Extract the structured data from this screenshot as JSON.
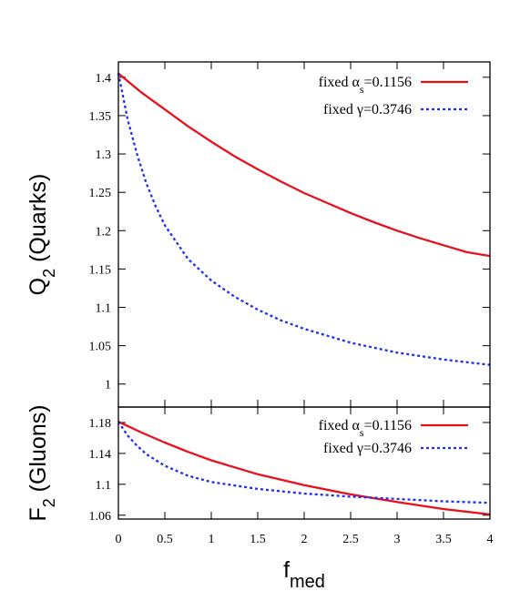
{
  "chart_data": [
    {
      "type": "line",
      "panel": "top",
      "ylabel": "Q",
      "ylabel_sub": "2",
      "ylabel_rest": " (Quarks)",
      "xlim": [
        0,
        4
      ],
      "ylim": [
        0.97,
        1.42
      ],
      "yticks": [
        1,
        1.05,
        1.1,
        1.15,
        1.2,
        1.25,
        1.3,
        1.35,
        1.4
      ],
      "ytick_labels": [
        "1",
        "1.05",
        "1.1",
        "1.15",
        "1.2",
        "1.25",
        "1.3",
        "1.35",
        "1.4"
      ],
      "legend_position": "top-right",
      "series": [
        {
          "name_pre": "fixed ",
          "name_greek": "α",
          "name_sub": "s",
          "name_post": "=0.1156",
          "color": "#e8101b",
          "style": "solid",
          "x": [
            0,
            0.25,
            0.5,
            0.75,
            1,
            1.25,
            1.5,
            1.75,
            2,
            2.25,
            2.5,
            2.75,
            3,
            3.25,
            3.5,
            3.75,
            4
          ],
          "y": [
            1.405,
            1.38,
            1.358,
            1.336,
            1.316,
            1.297,
            1.28,
            1.264,
            1.249,
            1.236,
            1.223,
            1.211,
            1.2,
            1.19,
            1.181,
            1.172,
            1.167
          ]
        },
        {
          "name_pre": "fixed ",
          "name_greek": "γ",
          "name_sub": "",
          "name_post": "=0.3746",
          "color": "#1f2ff0",
          "style": "dotted",
          "x": [
            0,
            0.1,
            0.2,
            0.3,
            0.4,
            0.5,
            0.75,
            1,
            1.25,
            1.5,
            1.75,
            2,
            2.5,
            3,
            3.5,
            4
          ],
          "y": [
            1.405,
            1.345,
            1.3,
            1.262,
            1.232,
            1.207,
            1.163,
            1.135,
            1.114,
            1.097,
            1.083,
            1.072,
            1.054,
            1.041,
            1.032,
            1.025
          ]
        }
      ]
    },
    {
      "type": "line",
      "panel": "bottom",
      "xlabel": "f",
      "xlabel_sub": "med",
      "ylabel": "F",
      "ylabel_sub": "2",
      "ylabel_rest": " (Gluons)",
      "xlim": [
        0,
        4
      ],
      "ylim": [
        1.055,
        1.2
      ],
      "xticks": [
        0,
        0.5,
        1,
        1.5,
        2,
        2.5,
        3,
        3.5,
        4
      ],
      "xtick_labels": [
        "0",
        "0.5",
        "1",
        "1.5",
        "2",
        "2.5",
        "3",
        "3.5",
        "4"
      ],
      "yticks": [
        1.06,
        1.1,
        1.14,
        1.18
      ],
      "ytick_labels": [
        "1.06",
        "1.1",
        "1.14",
        "1.18"
      ],
      "legend_position": "top-right",
      "series": [
        {
          "name_pre": "fixed ",
          "name_greek": "α",
          "name_sub": "s",
          "name_post": "=0.1156",
          "color": "#e8101b",
          "style": "solid",
          "x": [
            0,
            0.25,
            0.5,
            0.75,
            1,
            1.5,
            2,
            2.5,
            3,
            3.5,
            4
          ],
          "y": [
            1.181,
            1.167,
            1.154,
            1.142,
            1.131,
            1.113,
            1.099,
            1.087,
            1.077,
            1.068,
            1.061
          ]
        },
        {
          "name_pre": "fixed ",
          "name_greek": "γ",
          "name_sub": "",
          "name_post": "=0.3746",
          "color": "#1f2ff0",
          "style": "dotted",
          "x": [
            0,
            0.1,
            0.2,
            0.3,
            0.5,
            0.75,
            1,
            1.5,
            2,
            2.5,
            3,
            3.5,
            4
          ],
          "y": [
            1.181,
            1.163,
            1.15,
            1.139,
            1.124,
            1.111,
            1.103,
            1.094,
            1.088,
            1.084,
            1.081,
            1.078,
            1.076
          ]
        }
      ]
    }
  ]
}
